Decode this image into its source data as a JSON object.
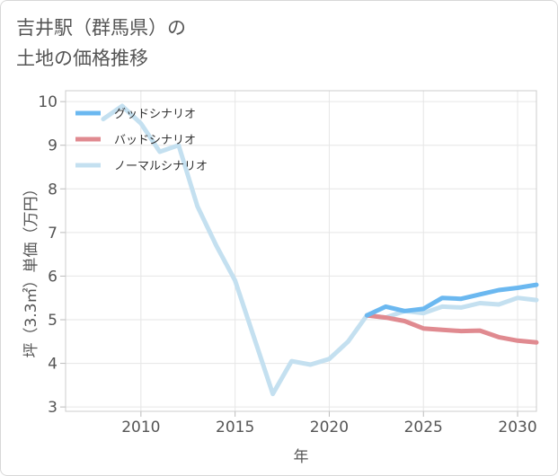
{
  "chart_data": {
    "type": "line",
    "title_line1": "吉井駅（群馬県）の",
    "title_line2": "土地の価格推移",
    "xlabel": "年",
    "ylabel": "坪（3.3㎡）単価（万円）",
    "xlim": [
      2006,
      2031
    ],
    "ylim": [
      2.9,
      10.25
    ],
    "xticks": [
      2010,
      2015,
      2020,
      2025,
      2030
    ],
    "yticks": [
      3,
      4,
      5,
      6,
      7,
      8,
      9,
      10
    ],
    "series": [
      {
        "name": "グッドシナリオ",
        "color": "#6bb8f0",
        "x": [
          2022,
          2023,
          2024,
          2025,
          2026,
          2027,
          2028,
          2029,
          2030,
          2031
        ],
        "y": [
          5.1,
          5.3,
          5.2,
          5.25,
          5.5,
          5.48,
          5.58,
          5.68,
          5.73,
          5.8
        ]
      },
      {
        "name": "バッドシナリオ",
        "color": "#e08a90",
        "x": [
          2022,
          2023,
          2024,
          2025,
          2026,
          2027,
          2028,
          2029,
          2030,
          2031
        ],
        "y": [
          5.1,
          5.05,
          4.97,
          4.8,
          4.77,
          4.74,
          4.75,
          4.6,
          4.52,
          4.48
        ]
      },
      {
        "name": "ノーマルシナリオ",
        "color": "#c4e0f0",
        "x": [
          2008,
          2009,
          2010,
          2011,
          2012,
          2013,
          2014,
          2015,
          2016,
          2017,
          2018,
          2019,
          2020,
          2021,
          2022,
          2023,
          2024,
          2025,
          2026,
          2027,
          2028,
          2029,
          2030,
          2031
        ],
        "y": [
          9.6,
          9.9,
          9.5,
          8.85,
          9.0,
          7.6,
          6.7,
          5.9,
          4.6,
          3.3,
          4.05,
          3.97,
          4.1,
          4.5,
          5.1,
          5.05,
          5.2,
          5.15,
          5.3,
          5.28,
          5.38,
          5.35,
          5.5,
          5.45
        ]
      }
    ]
  }
}
